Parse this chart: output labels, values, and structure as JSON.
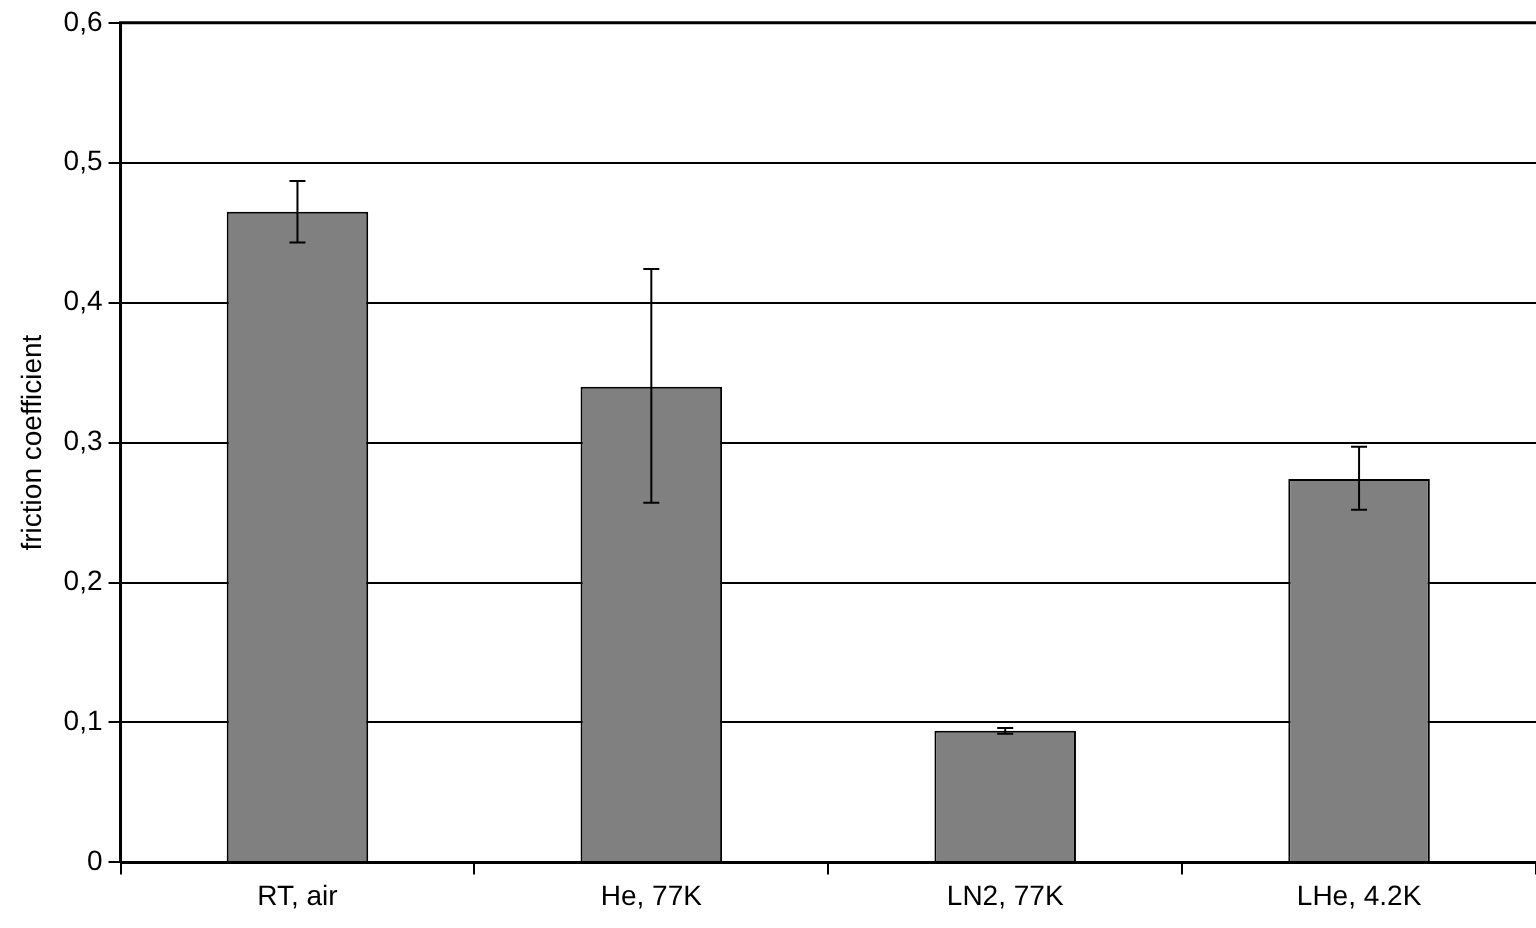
{
  "chart_data": {
    "type": "bar",
    "ylabel": "friction coefficient",
    "categories": [
      "RT, air",
      "He, 77K",
      "LN2, 77K",
      "LHe, 4.2K"
    ],
    "values": [
      0.465,
      0.34,
      0.094,
      0.274
    ],
    "errors": [
      [
        0.443,
        0.487
      ],
      [
        0.257,
        0.424
      ],
      [
        0.092,
        0.096
      ],
      [
        0.252,
        0.297
      ]
    ],
    "color": "#808080",
    "ylim": [
      0,
      0.6
    ],
    "yticks": [
      {
        "value": 0,
        "label": "0"
      },
      {
        "value": 0.1,
        "label": "0,1"
      },
      {
        "value": 0.2,
        "label": "0,2"
      },
      {
        "value": 0.3,
        "label": "0,3"
      },
      {
        "value": 0.4,
        "label": "0,4"
      },
      {
        "value": 0.5,
        "label": "0,5"
      },
      {
        "value": 0.6,
        "label": "0,6"
      }
    ],
    "grid": "y",
    "legend": false
  }
}
